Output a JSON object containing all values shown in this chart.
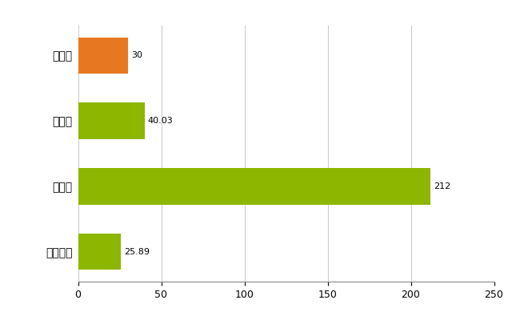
{
  "categories": [
    "佐伯区",
    "県平均",
    "県最大",
    "全国平均"
  ],
  "values": [
    30,
    40.03,
    212,
    25.89
  ],
  "bar_colors": [
    "#e87722",
    "#8db600",
    "#8db600",
    "#8db600"
  ],
  "value_labels": [
    "30",
    "40.03",
    "212",
    "25.89"
  ],
  "xlim": [
    0,
    250
  ],
  "xticks": [
    0,
    50,
    100,
    150,
    200,
    250
  ],
  "background_color": "#ffffff",
  "grid_color": "#cccccc",
  "bar_height": 0.55
}
